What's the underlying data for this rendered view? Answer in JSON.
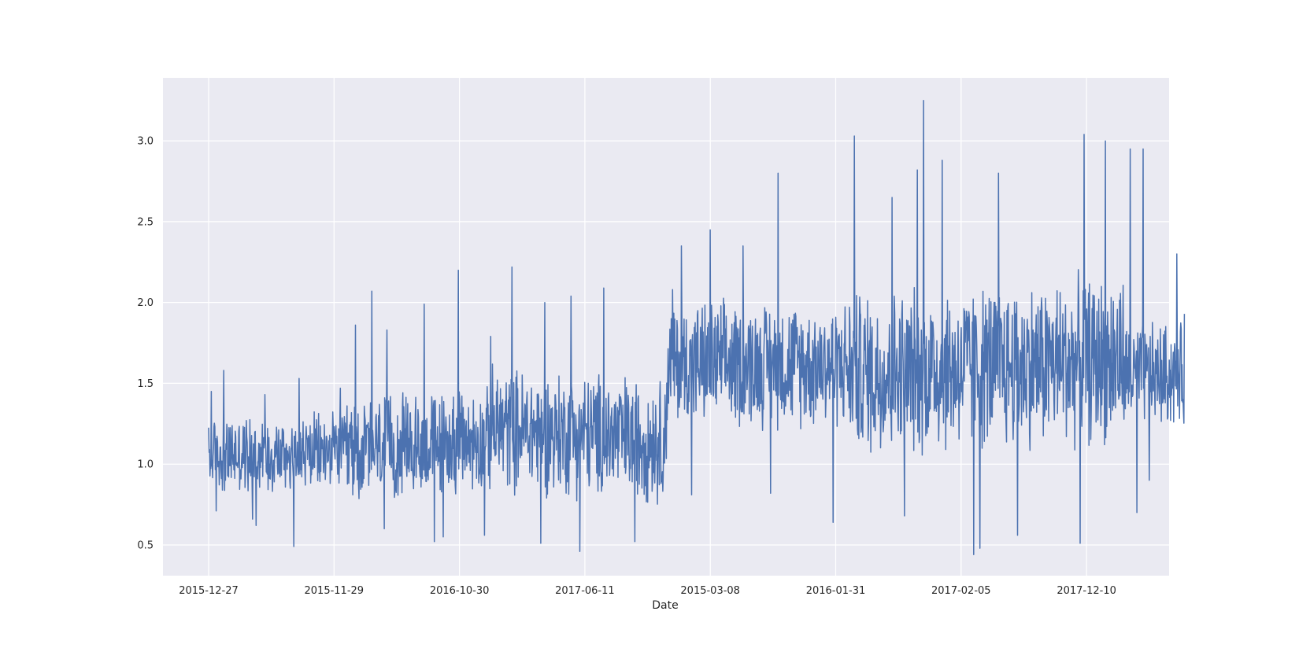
{
  "chart_data": {
    "type": "line",
    "title": "",
    "xlabel": "Date",
    "ylabel": "",
    "x_tick_labels": [
      "2015-12-27",
      "2015-11-29",
      "2016-10-30",
      "2017-06-11",
      "2015-03-08",
      "2016-01-31",
      "2017-02-05",
      "2017-12-10"
    ],
    "y_tick_labels": [
      "0.5",
      "1.0",
      "1.5",
      "2.0",
      "2.5",
      "3.0"
    ],
    "y_ticks": [
      0.5,
      1.0,
      1.5,
      2.0,
      2.5,
      3.0
    ],
    "ylim": [
      0.31,
      3.39
    ],
    "grid": true,
    "legend": "none",
    "colors": {
      "line": "#4c72b0",
      "plot_background": "#eaeaf2",
      "grid": "#ffffff",
      "text": "#262626"
    },
    "series": [
      {
        "segments": [
          {
            "from_tick": 0,
            "to_tick": 1.1,
            "base": [
              1.05,
              1.08
            ],
            "amplitude": 0.22,
            "peaks": [
              [
                0.02,
                1.45
              ],
              [
                0.12,
                1.58
              ],
              [
                0.45,
                1.43
              ],
              [
                0.68,
                0.49
              ],
              [
                0.72,
                1.53
              ],
              [
                1.05,
                1.47
              ]
            ],
            "troughs": [
              [
                0.06,
                0.71
              ],
              [
                0.35,
                0.66
              ],
              [
                0.38,
                0.62
              ],
              [
                0.68,
                0.49
              ]
            ]
          },
          {
            "from_tick": 1.1,
            "to_tick": 2.25,
            "base": [
              1.08,
              1.15
            ],
            "amplitude": 0.3,
            "peaks": [
              [
                1.17,
                1.86
              ],
              [
                1.3,
                2.07
              ],
              [
                1.42,
                1.83
              ],
              [
                1.72,
                1.99
              ],
              [
                1.8,
                1.89
              ],
              [
                1.99,
                2.2
              ],
              [
                2.25,
                1.79
              ]
            ],
            "troughs": [
              [
                1.4,
                0.6
              ],
              [
                1.8,
                0.52
              ],
              [
                1.87,
                0.55
              ],
              [
                2.2,
                0.56
              ]
            ]
          },
          {
            "from_tick": 2.25,
            "to_tick": 3.65,
            "base": [
              1.22,
              1.15
            ],
            "amplitude": 0.36,
            "peaks": [
              [
                2.42,
                2.22
              ],
              [
                2.68,
                2.0
              ],
              [
                2.89,
                2.04
              ],
              [
                3.15,
                2.09
              ],
              [
                3.4,
                1.66
              ]
            ],
            "troughs": [
              [
                2.65,
                0.51
              ],
              [
                2.96,
                0.46
              ],
              [
                3.4,
                0.52
              ]
            ]
          },
          {
            "from_tick": 3.65,
            "to_tick": 5.1,
            "base": [
              1.62,
              1.62
            ],
            "amplitude": 0.36,
            "peaks": [
              [
                3.7,
                2.08
              ],
              [
                3.77,
                2.35
              ],
              [
                4.0,
                2.45
              ],
              [
                4.26,
                2.35
              ],
              [
                4.54,
                2.8
              ],
              [
                4.98,
                2.58
              ]
            ],
            "troughs": [
              [
                3.85,
                0.81
              ],
              [
                4.48,
                0.82
              ],
              [
                4.98,
                0.64
              ]
            ]
          },
          {
            "from_tick": 5.1,
            "to_tick": 7.3,
            "base": [
              1.55,
              1.65
            ],
            "amplitude": 0.48,
            "peaks": [
              [
                5.15,
                3.03
              ],
              [
                5.45,
                2.65
              ],
              [
                5.65,
                2.82
              ],
              [
                5.7,
                3.25
              ],
              [
                5.85,
                2.88
              ],
              [
                6.3,
                2.8
              ],
              [
                6.45,
                3.05
              ],
              [
                6.98,
                3.04
              ],
              [
                7.15,
                3.0
              ],
              [
                7.35,
                2.95
              ],
              [
                7.45,
                2.95
              ],
              [
                7.5,
                3.17
              ]
            ],
            "troughs": [
              [
                5.55,
                0.68
              ],
              [
                6.1,
                0.44
              ],
              [
                6.15,
                0.48
              ],
              [
                6.45,
                0.56
              ],
              [
                6.95,
                0.51
              ],
              [
                7.4,
                0.7
              ]
            ]
          },
          {
            "from_tick": 7.3,
            "to_tick": 7.3,
            "base": [
              1.55,
              1.55
            ],
            "amplitude": 0.3,
            "peaks": [
              [
                7.72,
                2.3
              ],
              [
                7.78,
                1.93
              ]
            ],
            "troughs": [
              [
                7.5,
                0.9
              ],
              [
                7.8,
                1.05
              ]
            ]
          }
        ],
        "x_end_tick": 7.3
      }
    ]
  }
}
